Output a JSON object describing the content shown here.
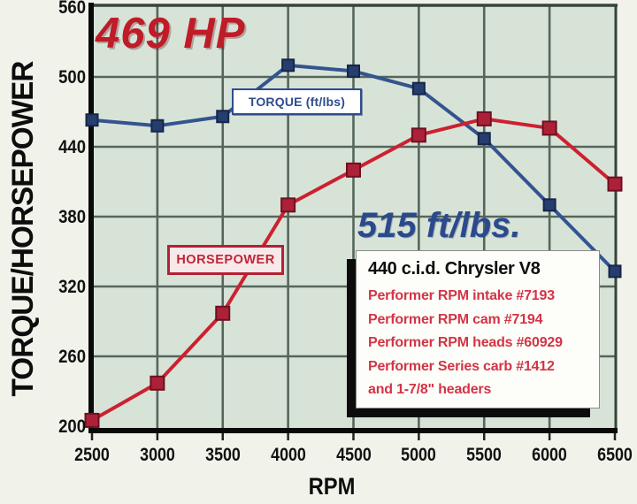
{
  "page": {
    "kind": "engine-dyno-chart"
  },
  "annotations": {
    "peak_hp": "469 HP",
    "peak_hp_color": "#bf1c28",
    "peak_torque": "515 ft/lbs.",
    "peak_torque_color": "#2b4a8d"
  },
  "series_tags": {
    "torque_label": "TORQUE (ft/lbs)",
    "horsepower_label": "HORSEPOWER"
  },
  "info_box": {
    "title": "440 c.i.d. Chrysler V8",
    "specs": [
      "Performer RPM intake #7193",
      "Performer RPM cam #7194",
      "Performer RPM heads #60929",
      "Performer Series carb #1412",
      "and 1-7/8\" headers"
    ]
  },
  "chart_data": {
    "type": "line",
    "title": "",
    "xlabel": "RPM",
    "ylabel": "TORQUE/HORSEPOWER",
    "x": [
      2500,
      3000,
      3500,
      4000,
      4500,
      5000,
      5500,
      6000,
      6500
    ],
    "xlim": [
      2500,
      6500
    ],
    "ylim": [
      200,
      560
    ],
    "xticks": [
      2500,
      3000,
      3500,
      4000,
      4500,
      5000,
      5500,
      6000,
      6500
    ],
    "yticks": [
      200,
      260,
      320,
      380,
      440,
      500,
      560
    ],
    "grid": true,
    "legend_position": "inline-boxes",
    "plot_bg": "#d8e3d8",
    "grid_color": "#55665c",
    "series": [
      {
        "name": "TORQUE (ft/lbs)",
        "units": "ft/lbs",
        "peak_claim": 515,
        "line_color": "#33548f",
        "marker_fill": "#263e6e",
        "marker_stroke": "#16254a",
        "marker_size": 13,
        "values": [
          463,
          458,
          466,
          510,
          505,
          490,
          447,
          390,
          333
        ]
      },
      {
        "name": "HORSEPOWER",
        "units": "hp",
        "peak_claim": 469,
        "line_color": "#cc2130",
        "marker_fill": "#ad2138",
        "marker_stroke": "#6e1020",
        "marker_size": 15,
        "values": [
          205,
          237,
          297,
          390,
          420,
          450,
          464,
          456,
          408
        ]
      }
    ]
  }
}
